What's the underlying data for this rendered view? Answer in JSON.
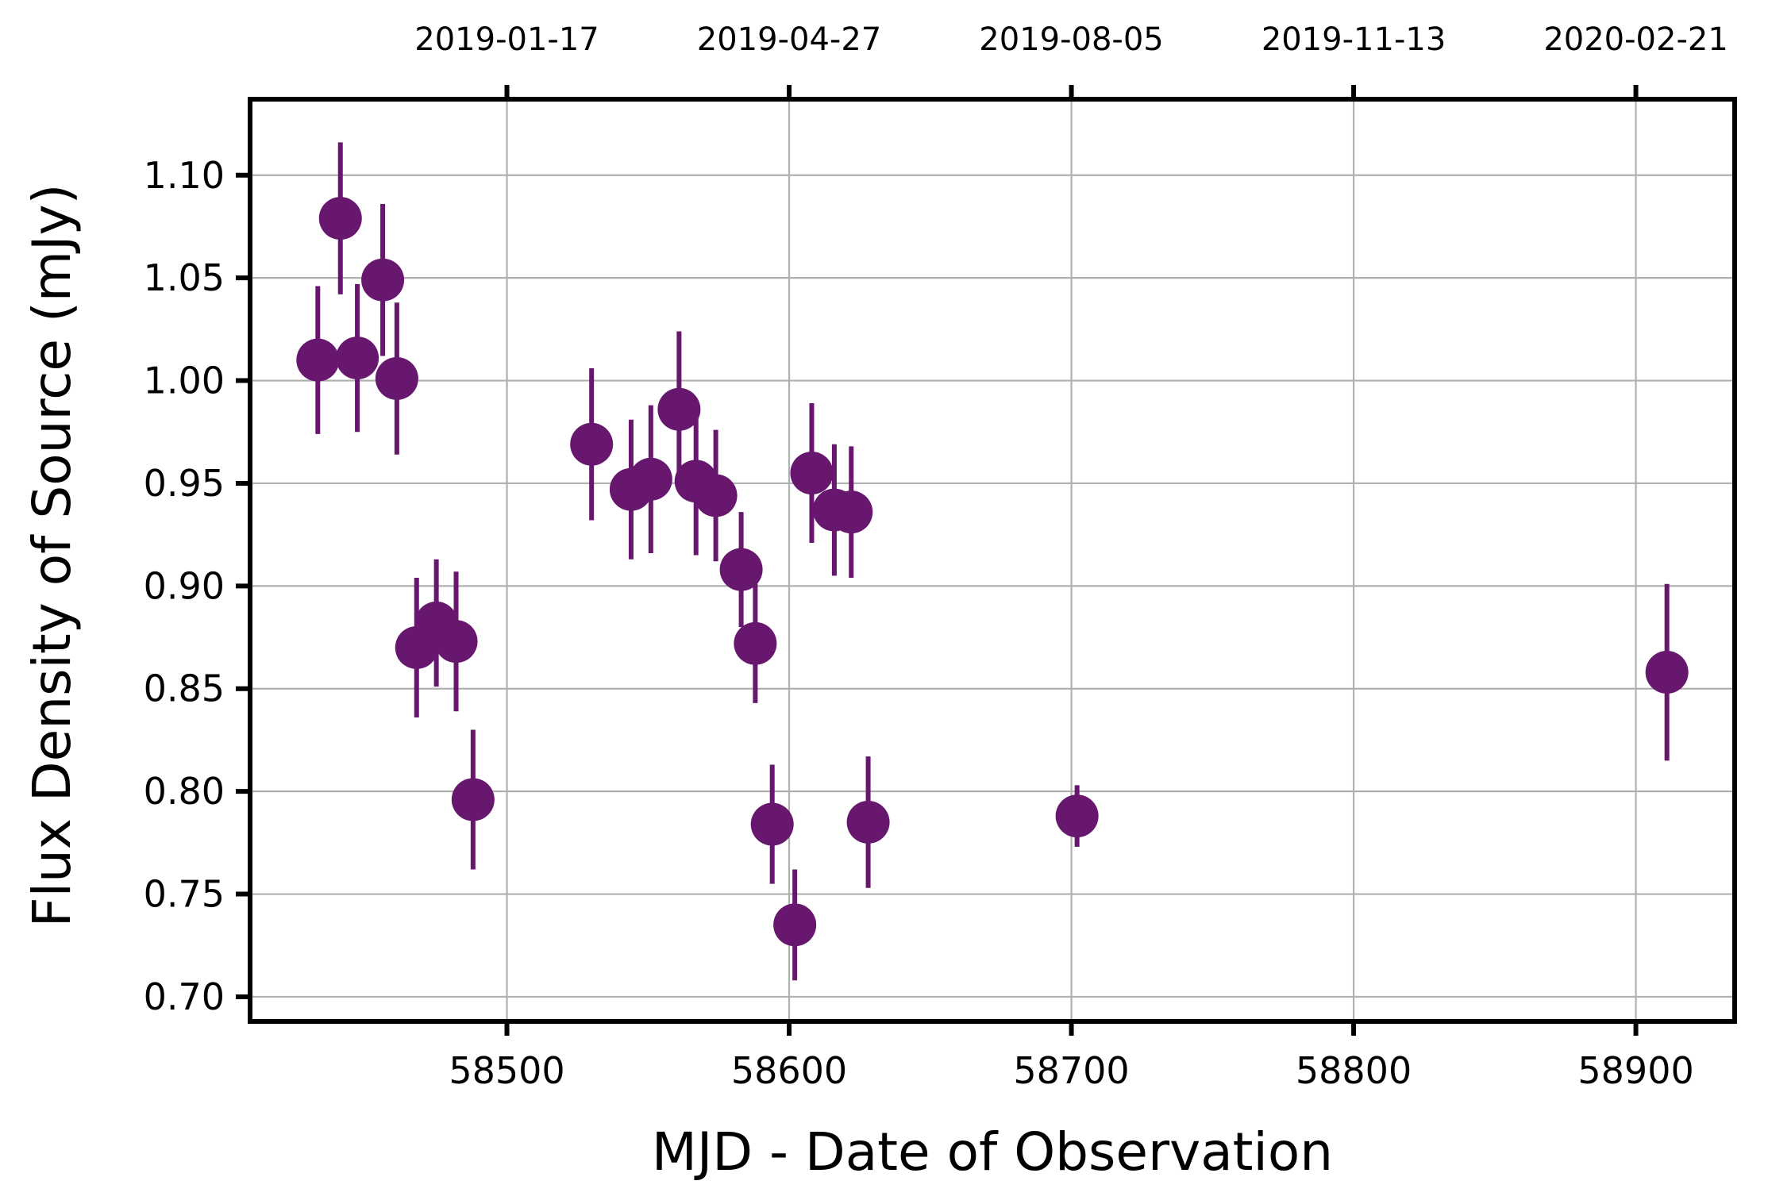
{
  "colors": {
    "marker": "#68176E",
    "grid": "#b0b0b0",
    "frame": "#000000",
    "background": "#ffffff"
  },
  "chart_data": {
    "type": "scatter",
    "title": "",
    "xlabel": "MJD - Date of Observation",
    "ylabel": "Flux Density of Source (mJy)",
    "xlim": [
      58409,
      58935
    ],
    "ylim": [
      0.688,
      1.137
    ],
    "grid": true,
    "x_ticks": [
      58500,
      58600,
      58700,
      58800,
      58900
    ],
    "x_tick_labels": [
      "58500",
      "58600",
      "58700",
      "58800",
      "58900"
    ],
    "y_ticks": [
      0.7,
      0.75,
      0.8,
      0.85,
      0.9,
      0.95,
      1.0,
      1.05,
      1.1
    ],
    "y_tick_labels": [
      "0.70",
      "0.75",
      "0.80",
      "0.85",
      "0.90",
      "0.95",
      "1.00",
      "1.05",
      "1.10"
    ],
    "top_axis": {
      "ticks": [
        58500,
        58600,
        58700,
        58800,
        58900
      ],
      "tick_labels": [
        "2019-01-17",
        "2019-04-27",
        "2019-08-05",
        "2019-11-13",
        "2020-02-21"
      ]
    },
    "series": [
      {
        "x": [
          58433,
          58441,
          58447,
          58456,
          58461,
          58468,
          58475,
          58482,
          58488,
          58530,
          58544,
          58551,
          58561,
          58567,
          58574,
          58583,
          58588,
          58594,
          58602,
          58608,
          58616,
          58622,
          58628,
          58702,
          58911
        ],
        "y": [
          1.01,
          1.079,
          1.011,
          1.049,
          1.001,
          0.87,
          0.882,
          0.873,
          0.796,
          0.969,
          0.947,
          0.952,
          0.986,
          0.951,
          0.944,
          0.908,
          0.872,
          0.784,
          0.735,
          0.955,
          0.937,
          0.936,
          0.785,
          0.788,
          0.858
        ],
        "yerr": [
          0.036,
          0.037,
          0.036,
          0.037,
          0.037,
          0.034,
          0.031,
          0.034,
          0.034,
          0.037,
          0.034,
          0.036,
          0.038,
          0.036,
          0.032,
          0.028,
          0.029,
          0.029,
          0.027,
          0.034,
          0.032,
          0.032,
          0.032,
          0.015,
          0.043
        ]
      }
    ]
  }
}
